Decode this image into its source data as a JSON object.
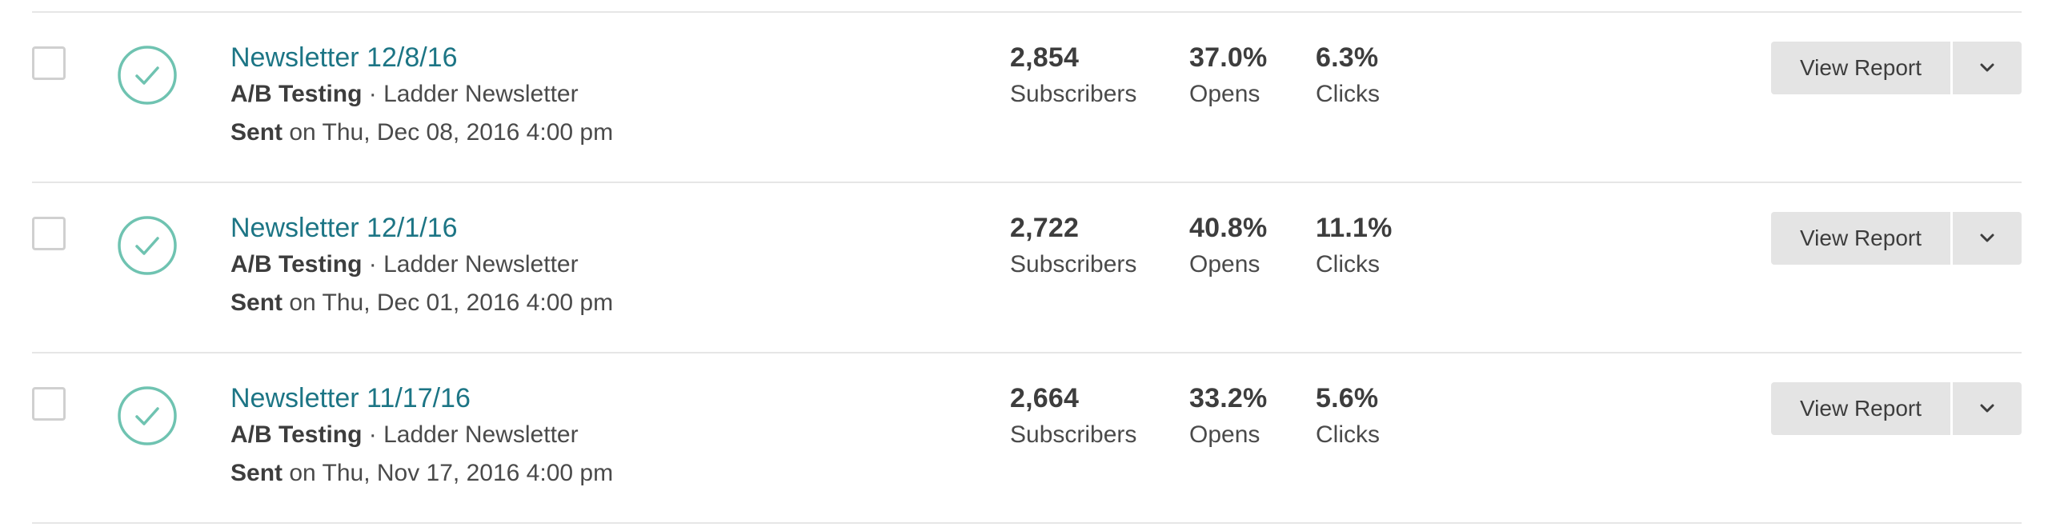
{
  "campaigns": [
    {
      "title": "Newsletter 12/8/16",
      "type": "A/B Testing",
      "separator": " · ",
      "list": "Ladder Newsletter",
      "sent_label": "Sent",
      "sent_text": " on Thu, Dec 08, 2016 4:00 pm",
      "subscribers": "2,854",
      "subscribers_label": "Subscribers",
      "opens": "37.0%",
      "opens_label": "Opens",
      "clicks": "6.3%",
      "clicks_label": "Clicks",
      "report_label": "View Report"
    },
    {
      "title": "Newsletter 12/1/16",
      "type": "A/B Testing",
      "separator": " · ",
      "list": "Ladder Newsletter",
      "sent_label": "Sent",
      "sent_text": " on Thu, Dec 01, 2016 4:00 pm",
      "subscribers": "2,722",
      "subscribers_label": "Subscribers",
      "opens": "40.8%",
      "opens_label": "Opens",
      "clicks": "11.1%",
      "clicks_label": "Clicks",
      "report_label": "View Report"
    },
    {
      "title": "Newsletter 11/17/16",
      "type": "A/B Testing",
      "separator": " · ",
      "list": "Ladder Newsletter",
      "sent_label": "Sent",
      "sent_text": " on Thu, Nov 17, 2016 4:00 pm",
      "subscribers": "2,664",
      "subscribers_label": "Subscribers",
      "opens": "33.2%",
      "opens_label": "Opens",
      "clicks": "5.6%",
      "clicks_label": "Clicks",
      "report_label": "View Report"
    }
  ],
  "icons": {
    "status": "check-circle-icon",
    "toggle": "chevron-down-icon"
  },
  "colors": {
    "title_link": "#1c7585",
    "status_check": "#6fc3b1",
    "button_bg": "#e4e4e4",
    "divider": "#e6e6e6"
  }
}
